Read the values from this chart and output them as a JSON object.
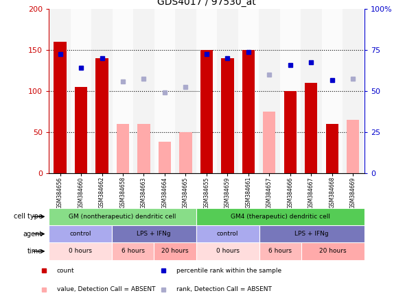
{
  "title": "GDS4017 / 97530_at",
  "samples": [
    "GSM384656",
    "GSM384660",
    "GSM384662",
    "GSM384658",
    "GSM384663",
    "GSM384664",
    "GSM384665",
    "GSM384655",
    "GSM384659",
    "GSM384661",
    "GSM384657",
    "GSM384666",
    "GSM384667",
    "GSM384668",
    "GSM384669"
  ],
  "bar_values": [
    160,
    105,
    140,
    60,
    60,
    38,
    50,
    150,
    140,
    150,
    75,
    100,
    110,
    60,
    65
  ],
  "bar_absent": [
    false,
    false,
    false,
    true,
    true,
    true,
    true,
    false,
    false,
    false,
    true,
    false,
    false,
    false,
    true
  ],
  "dot_values": [
    145,
    128,
    140,
    112,
    115,
    98,
    105,
    145,
    140,
    148,
    120,
    132,
    135,
    113,
    115
  ],
  "dot_absent": [
    false,
    false,
    false,
    true,
    true,
    true,
    true,
    false,
    false,
    false,
    true,
    false,
    false,
    false,
    true
  ],
  "ylim_left": [
    0,
    200
  ],
  "ylim_right": [
    0,
    100
  ],
  "left_ticks": [
    0,
    50,
    100,
    150,
    200
  ],
  "right_ticks": [
    0,
    25,
    50,
    75,
    100
  ],
  "right_tick_labels": [
    "0",
    "25",
    "50",
    "75",
    "100%"
  ],
  "bar_color_present": "#cc0000",
  "bar_color_absent": "#ffaaaa",
  "dot_color_present": "#0000cc",
  "dot_color_absent": "#aaaacc",
  "cell_type_groups": [
    {
      "label": "GM (nontherapeutic) dendritic cell",
      "start": 0,
      "end": 7,
      "color": "#88dd88"
    },
    {
      "label": "GM4 (therapeutic) dendritic cell",
      "start": 7,
      "end": 15,
      "color": "#55cc55"
    }
  ],
  "agent_groups": [
    {
      "label": "control",
      "start": 0,
      "end": 3,
      "color": "#aaaaee"
    },
    {
      "label": "LPS + IFNg",
      "start": 3,
      "end": 7,
      "color": "#7777bb"
    },
    {
      "label": "control",
      "start": 7,
      "end": 10,
      "color": "#aaaaee"
    },
    {
      "label": "LPS + IFNg",
      "start": 10,
      "end": 15,
      "color": "#7777bb"
    }
  ],
  "time_groups": [
    {
      "label": "0 hours",
      "start": 0,
      "end": 3,
      "color": "#ffdddd"
    },
    {
      "label": "6 hours",
      "start": 3,
      "end": 5,
      "color": "#ffbbbb"
    },
    {
      "label": "20 hours",
      "start": 5,
      "end": 7,
      "color": "#ffaaaa"
    },
    {
      "label": "0 hours",
      "start": 7,
      "end": 10,
      "color": "#ffdddd"
    },
    {
      "label": "6 hours",
      "start": 10,
      "end": 12,
      "color": "#ffbbbb"
    },
    {
      "label": "20 hours",
      "start": 12,
      "end": 15,
      "color": "#ffaaaa"
    }
  ],
  "legend_items": [
    {
      "color": "#cc0000",
      "label": "count",
      "marker": "s"
    },
    {
      "color": "#0000cc",
      "label": "percentile rank within the sample",
      "marker": "s"
    },
    {
      "color": "#ffaaaa",
      "label": "value, Detection Call = ABSENT",
      "marker": "s"
    },
    {
      "color": "#aaaacc",
      "label": "rank, Detection Call = ABSENT",
      "marker": "s"
    }
  ],
  "axis_label_color_left": "#cc0000",
  "axis_label_color_right": "#0000cc",
  "bg_color": "#ffffff"
}
